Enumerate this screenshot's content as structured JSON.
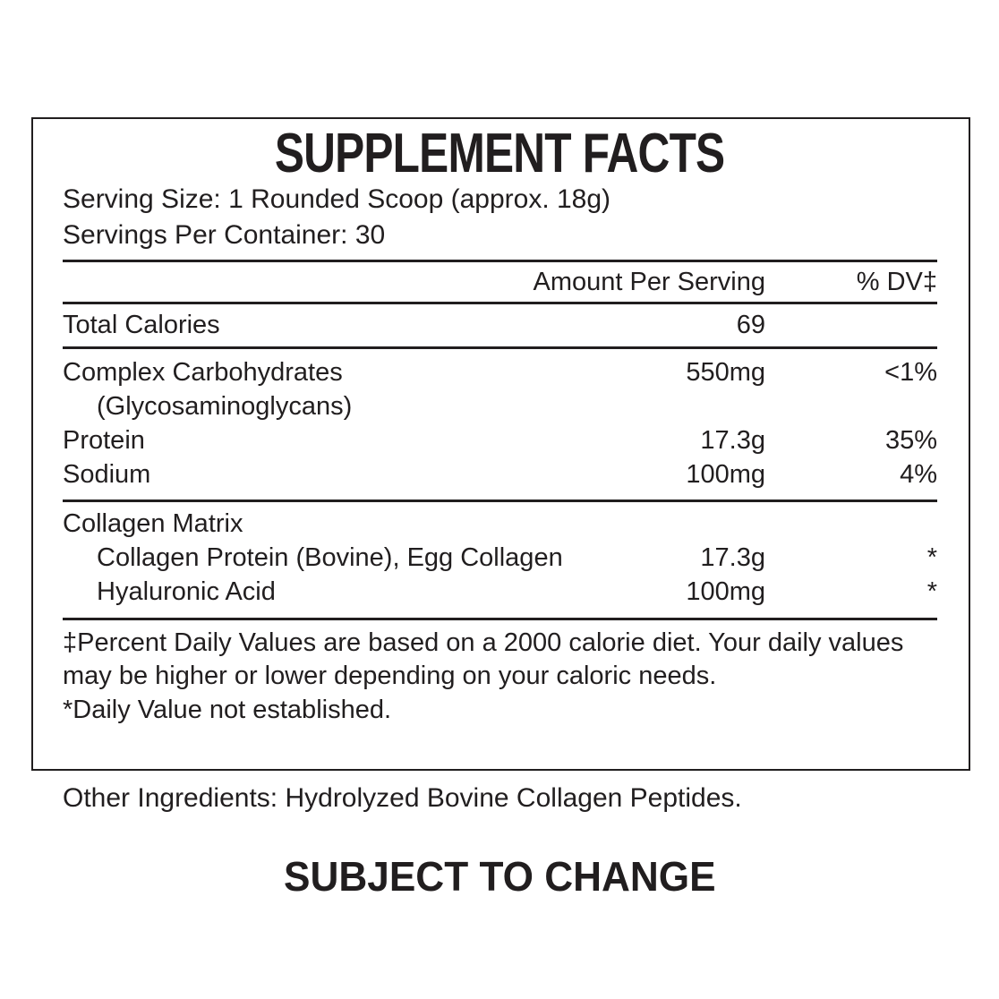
{
  "colors": {
    "text": "#211e1f",
    "background": "#ffffff"
  },
  "supplement_facts": {
    "title": "SUPPLEMENT FACTS",
    "serving_size": "Serving Size: 1 Rounded Scoop (approx. 18g)",
    "servings_per_container": "Servings Per Container: 30",
    "header": {
      "amount": "Amount Per Serving",
      "dv": "% DV‡"
    },
    "rows": [
      {
        "name": "Total Calories",
        "amount": "69",
        "dv": ""
      },
      {
        "name": "Complex Carbohydrates",
        "name_line2": "(Glycosaminoglycans)",
        "amount": "550mg",
        "dv": "<1%"
      },
      {
        "name": "Protein",
        "amount": "17.3g",
        "dv": "35%"
      },
      {
        "name": "Sodium",
        "amount": "100mg",
        "dv": "4%"
      },
      {
        "name": "Collagen Matrix",
        "amount": "",
        "dv": ""
      },
      {
        "name": "Collagen Protein (Bovine), Egg Collagen",
        "amount": "17.3g",
        "dv": "*"
      },
      {
        "name": "Hyaluronic Acid",
        "amount": "100mg",
        "dv": "*"
      }
    ],
    "footnote_daily_values": "‡Percent Daily Values are based on a 2000 calorie diet. Your daily values may be higher or lower depending on your caloric needs.",
    "footnote_not_established": "*Daily Value not established."
  },
  "other_ingredients": "Other Ingredients: Hydrolyzed Bovine Collagen Peptides.",
  "footer_note": "SUBJECT TO CHANGE"
}
